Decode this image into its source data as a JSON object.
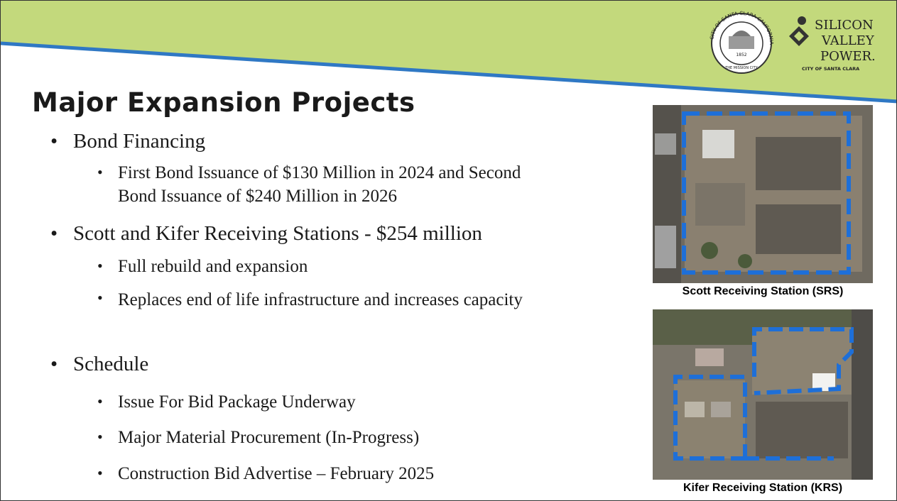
{
  "header": {
    "seal": {
      "ring_text": "CITY OF SANTA CLARA CALIFORNIA",
      "year": "1852",
      "motto": "THE MISSION CITY"
    },
    "brand": {
      "line1": "SILICON",
      "line2": "VALLEY",
      "line3": "POWER.",
      "tagline": "CITY OF SANTA CLARA"
    }
  },
  "title": "Major Expansion Projects",
  "bullets": [
    {
      "text": "Bond Financing",
      "sub": [
        "First Bond Issuance of $130 Million in 2024 and Second Bond Issuance of $240 Million in 2026"
      ]
    },
    {
      "text": "Scott and Kifer Receiving Stations - $254 million",
      "sub": [
        "Full rebuild and expansion",
        "Replaces end of life infrastructure and increases capacity"
      ]
    },
    {
      "text": "Schedule",
      "sub": [
        "Issue For Bid Package Underway",
        "Major Material Procurement (In-Progress)",
        "Construction Bid Advertise – February 2025"
      ]
    }
  ],
  "images": [
    {
      "caption": "Scott Receiving Station (SRS)"
    },
    {
      "caption": "Kifer Receiving Station (KRS)"
    }
  ]
}
